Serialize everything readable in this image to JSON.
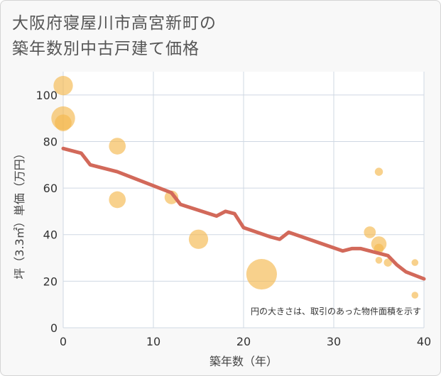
{
  "title_lines": [
    "大阪府寝屋川市高宮新町の",
    "築年数別中古戸建て価格"
  ],
  "chart_data": {
    "type": "scatter",
    "title": "大阪府寝屋川市高宮新町の築年数別中古戸建て価格",
    "xlabel": "築年数（年）",
    "ylabel": "坪（3.3㎡）単価（万円）",
    "xlim": [
      0,
      40
    ],
    "ylim": [
      0,
      110
    ],
    "xticks": [
      0,
      10,
      20,
      30,
      40
    ],
    "yticks": [
      0,
      20,
      40,
      60,
      80,
      100
    ],
    "grid": true,
    "note": "円の大きさは、取引のあった物件面積を示す",
    "colors": {
      "bubble": "#f5b94e",
      "trend": "#d2695a"
    },
    "bubbles": [
      {
        "x": 0,
        "y": 104,
        "size": 4
      },
      {
        "x": 0,
        "y": 90,
        "size": 6
      },
      {
        "x": 0,
        "y": 88,
        "size": 3
      },
      {
        "x": 6,
        "y": 78,
        "size": 3
      },
      {
        "x": 6,
        "y": 55,
        "size": 3
      },
      {
        "x": 12,
        "y": 56,
        "size": 2
      },
      {
        "x": 15,
        "y": 38,
        "size": 4
      },
      {
        "x": 22,
        "y": 23,
        "size": 10
      },
      {
        "x": 34,
        "y": 41,
        "size": 1.5
      },
      {
        "x": 35,
        "y": 67,
        "size": 0.7
      },
      {
        "x": 35,
        "y": 36,
        "size": 2.5
      },
      {
        "x": 35,
        "y": 34,
        "size": 1
      },
      {
        "x": 35,
        "y": 29,
        "size": 0.5
      },
      {
        "x": 36,
        "y": 28,
        "size": 0.7
      },
      {
        "x": 39,
        "y": 28,
        "size": 0.5
      },
      {
        "x": 39,
        "y": 14,
        "size": 0.5
      }
    ],
    "trend": {
      "x": [
        0,
        2,
        3,
        6,
        12,
        13,
        17,
        18,
        19,
        20,
        23,
        24,
        25,
        31,
        32,
        33,
        36,
        37,
        38,
        40
      ],
      "y": [
        77,
        75,
        70,
        67,
        58,
        53,
        48,
        50,
        49,
        43,
        39,
        38,
        41,
        33,
        34,
        34,
        31,
        27,
        24,
        21
      ]
    }
  }
}
